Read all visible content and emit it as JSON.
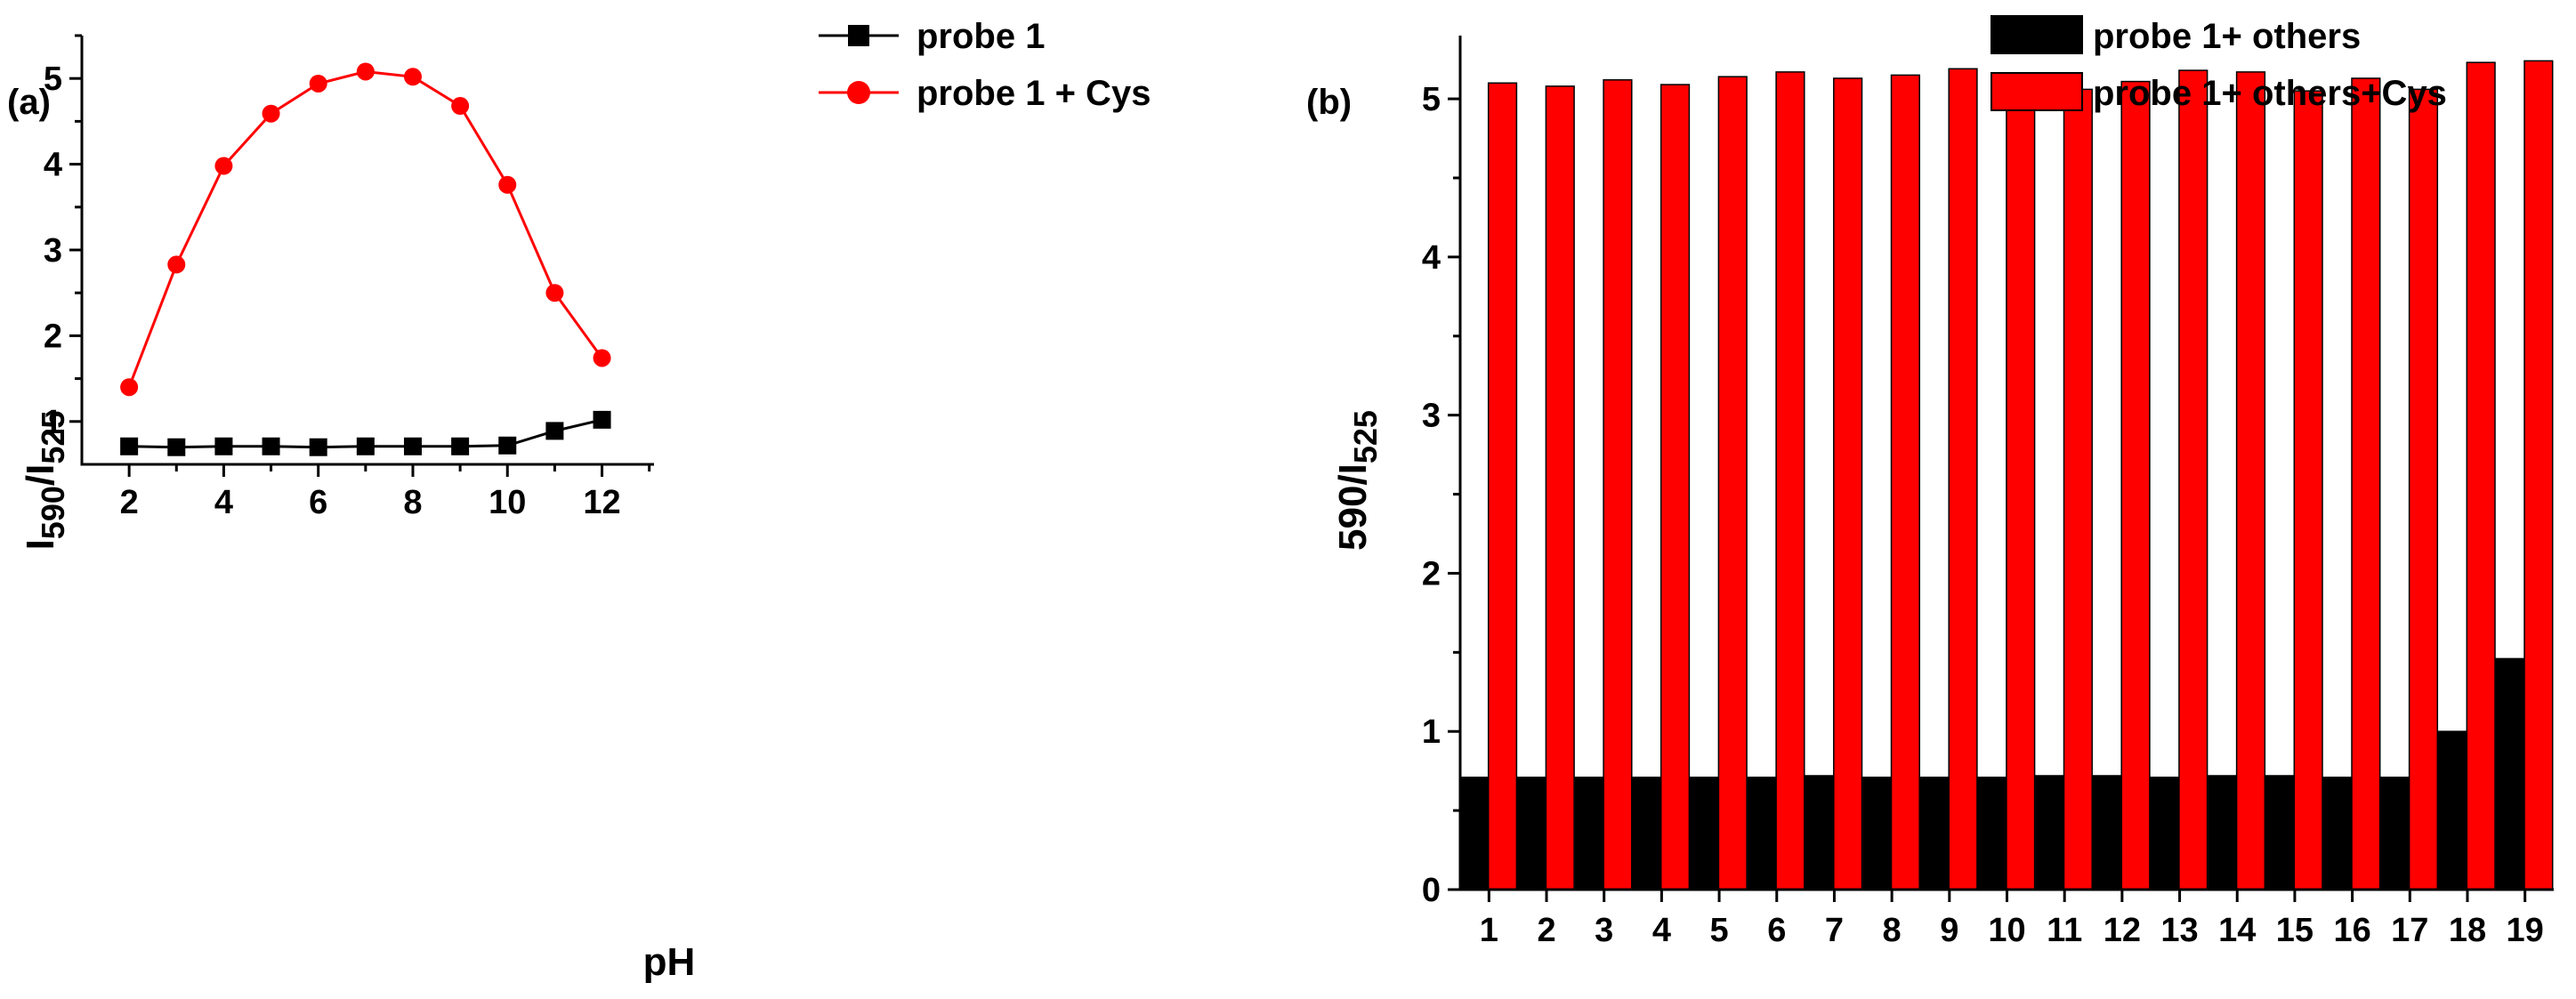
{
  "colors": {
    "red": "#ff0000",
    "black": "#000000"
  },
  "chart_data": [
    {
      "panel_label": "(a)",
      "type": "line",
      "xlabel": "pH",
      "ylabel": {
        "main": "I",
        "sub1": "590",
        "slash": "/I",
        "sub2": "525"
      },
      "xlim": [
        1,
        13.1
      ],
      "ylim": [
        0.5,
        5.5
      ],
      "xticks": [
        2,
        4,
        6,
        8,
        10,
        12
      ],
      "xtick_labels": [
        "2",
        "4",
        "6",
        "8",
        "10",
        "12"
      ],
      "yticks": [
        1,
        2,
        3,
        4,
        5
      ],
      "ytick_labels": [
        "1",
        "2",
        "3",
        "4",
        "5"
      ],
      "x": [
        2,
        3,
        4,
        5,
        6,
        7,
        8,
        9,
        10,
        11,
        12
      ],
      "series": [
        {
          "name": "probe 1",
          "color": "#000000",
          "marker": "square",
          "values": [
            0.71,
            0.7,
            0.71,
            0.71,
            0.7,
            0.71,
            0.71,
            0.71,
            0.72,
            0.89,
            1.02
          ]
        },
        {
          "name": "probe 1 + Cys",
          "color": "#ff0000",
          "marker": "circle",
          "values": [
            1.4,
            2.83,
            3.98,
            4.59,
            4.94,
            5.08,
            5.02,
            4.68,
            3.76,
            2.5,
            1.74
          ]
        }
      ],
      "legend": "top-right"
    },
    {
      "panel_label": "(b)",
      "type": "bar",
      "xlabel": "",
      "ylabel": {
        "main": "",
        "sub1": "590",
        "slash": "/I",
        "sub2": "525"
      },
      "ylim": [
        0,
        5.4
      ],
      "yticks": [
        0,
        1,
        2,
        3,
        4,
        5
      ],
      "ytick_labels": [
        "0",
        "1",
        "2",
        "3",
        "4",
        "5"
      ],
      "categories": [
        "1",
        "2",
        "3",
        "4",
        "5",
        "6",
        "7",
        "8",
        "9",
        "10",
        "11",
        "12",
        "13",
        "14",
        "15",
        "16",
        "17",
        "18",
        "19"
      ],
      "series": [
        {
          "name": "probe 1+ others",
          "color": "#000000",
          "values": [
            0.71,
            0.71,
            0.71,
            0.71,
            0.71,
            0.71,
            0.72,
            0.71,
            0.71,
            0.71,
            0.72,
            0.72,
            0.71,
            0.72,
            0.72,
            0.71,
            0.71,
            1.0,
            1.46
          ]
        },
        {
          "name": "probe 1+ others+Cys",
          "color": "#ff0000",
          "values": [
            5.1,
            5.08,
            5.12,
            5.09,
            5.14,
            5.17,
            5.13,
            5.15,
            5.19,
            5.07,
            5.06,
            5.11,
            5.18,
            5.17,
            5.05,
            5.13,
            5.06,
            5.23,
            5.24
          ]
        }
      ],
      "legend": "top-right"
    }
  ]
}
